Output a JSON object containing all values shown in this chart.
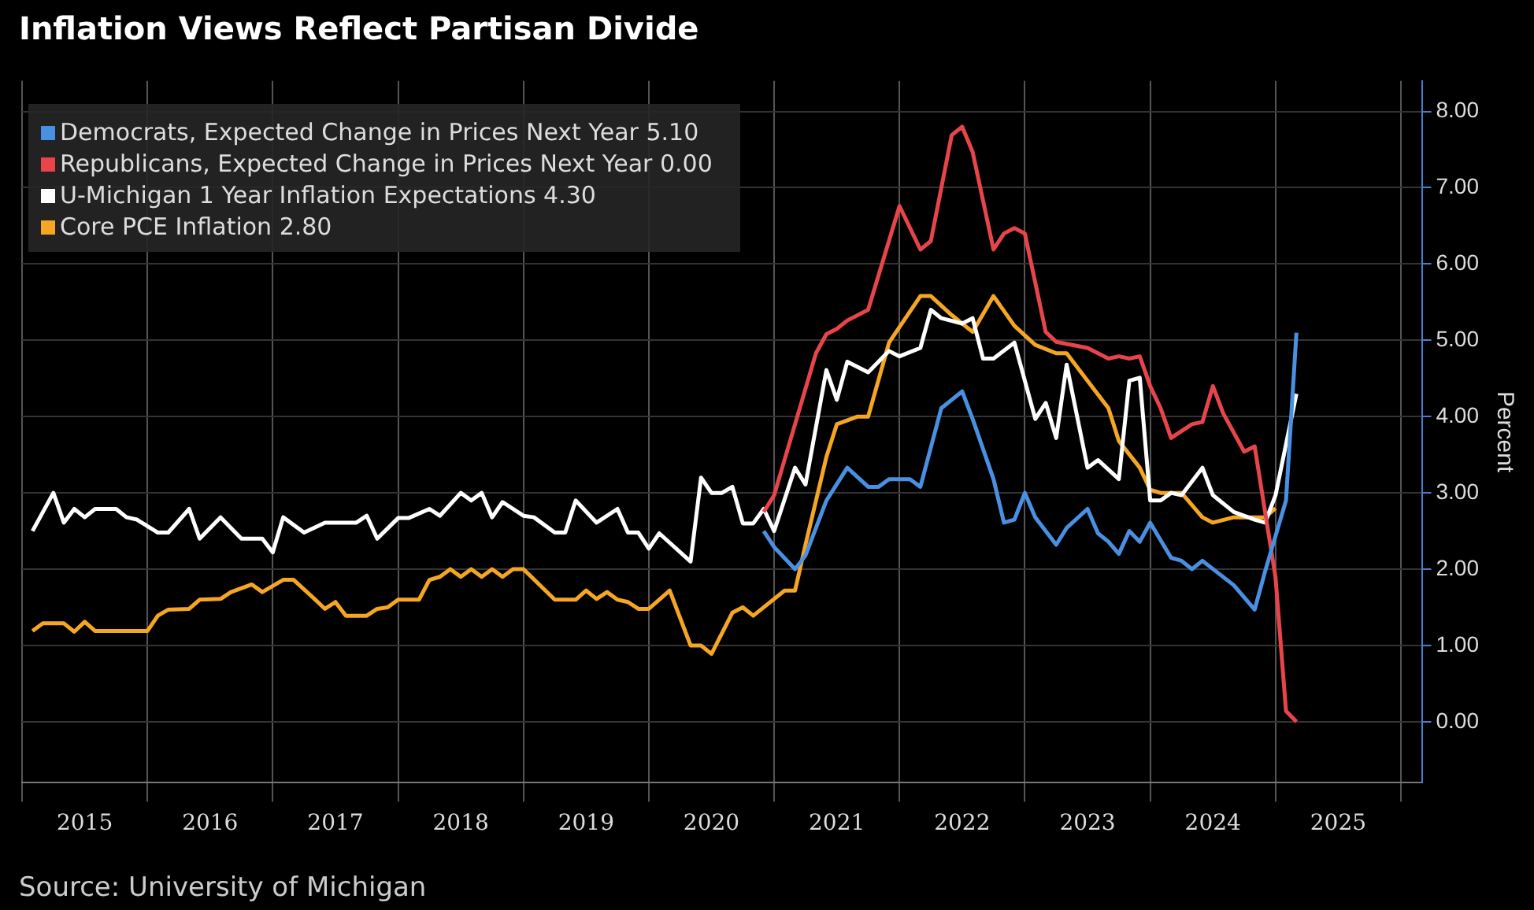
{
  "chart_data": {
    "type": "line",
    "title": "Inflation Views Reflect Partisan Divide",
    "ylabel": "Percent",
    "annotations": [
      "Source: University of Michigan"
    ],
    "xlim": [
      "2015-01",
      "2026-03"
    ],
    "xticks": [
      {
        "value": "2015-01",
        "label": null
      },
      {
        "value": "2015-07",
        "label": "2015"
      },
      {
        "value": "2016-01",
        "label": null
      },
      {
        "value": "2016-07",
        "label": "2016"
      },
      {
        "value": "2017-01",
        "label": null
      },
      {
        "value": "2017-07",
        "label": "2017"
      },
      {
        "value": "2018-01",
        "label": null
      },
      {
        "value": "2018-07",
        "label": "2018"
      },
      {
        "value": "2019-01",
        "label": null
      },
      {
        "value": "2019-07",
        "label": "2019"
      },
      {
        "value": "2020-01",
        "label": null
      },
      {
        "value": "2020-07",
        "label": "2020"
      },
      {
        "value": "2021-01",
        "label": null
      },
      {
        "value": "2021-07",
        "label": "2021"
      },
      {
        "value": "2022-01",
        "label": null
      },
      {
        "value": "2022-07",
        "label": "2022"
      },
      {
        "value": "2023-01",
        "label": null
      },
      {
        "value": "2023-07",
        "label": "2023"
      },
      {
        "value": "2024-01",
        "label": null
      },
      {
        "value": "2024-07",
        "label": "2024"
      },
      {
        "value": "2025-01",
        "label": null
      },
      {
        "value": "2025-07",
        "label": "2025"
      },
      {
        "value": "2026-01",
        "label": null
      }
    ],
    "ylim": [
      -0.8,
      8.4
    ],
    "yticks": [
      {
        "value": 0,
        "label": "0.00"
      },
      {
        "value": 1,
        "label": "1.00"
      },
      {
        "value": 2,
        "label": "2.00"
      },
      {
        "value": 3,
        "label": "3.00"
      },
      {
        "value": 4,
        "label": "4.00"
      },
      {
        "value": 5,
        "label": "5.00"
      },
      {
        "value": 6,
        "label": "6.00"
      },
      {
        "value": 7,
        "label": "7.00"
      },
      {
        "value": 8,
        "label": "8.00"
      }
    ],
    "grid": true,
    "legend": "top left",
    "marker": "none",
    "series": [
      {
        "name": "Democrats, Expected Change in Prices Next Year 5.10",
        "color": "#4a90e2",
        "x": [
          "2020-12",
          "2021-01",
          "2021-03",
          "2021-04",
          "2021-06",
          "2021-08",
          "2021-10",
          "2021-11",
          "2021-12",
          "2022-02",
          "2022-03",
          "2022-05",
          "2022-07",
          "2022-08",
          "2022-10",
          "2022-11",
          "2022-12",
          "2023-01",
          "2023-02",
          "2023-04",
          "2023-05",
          "2023-07",
          "2023-08",
          "2023-09",
          "2023-10",
          "2023-11",
          "2023-12",
          "2024-01",
          "2024-03",
          "2024-04",
          "2024-05",
          "2024-06",
          "2024-09",
          "2024-11",
          "2024-12",
          "2025-02",
          "2025-03"
        ],
        "values": [
          2.5,
          2.29,
          2.0,
          2.18,
          2.9,
          3.33,
          3.08,
          3.08,
          3.18,
          3.18,
          3.08,
          4.11,
          4.33,
          3.97,
          3.18,
          2.61,
          2.65,
          3.0,
          2.68,
          2.32,
          2.54,
          2.79,
          2.47,
          2.36,
          2.2,
          2.5,
          2.36,
          2.61,
          2.15,
          2.11,
          2.0,
          2.11,
          1.79,
          1.47,
          1.97,
          2.9,
          5.1
        ]
      },
      {
        "name": "Republicans, Expected Change in Prices Next Year 0.00",
        "color": "#e8454a",
        "x": [
          "2020-12",
          "2021-01",
          "2021-03",
          "2021-05",
          "2021-06",
          "2021-07",
          "2021-08",
          "2021-10",
          "2022-01",
          "2022-03",
          "2022-04",
          "2022-06",
          "2022-07",
          "2022-08",
          "2022-10",
          "2022-11",
          "2022-12",
          "2023-01",
          "2023-03",
          "2023-04",
          "2023-07",
          "2023-09",
          "2023-10",
          "2023-11",
          "2023-12",
          "2024-01",
          "2024-02",
          "2024-03",
          "2024-05",
          "2024-06",
          "2024-07",
          "2024-08",
          "2024-10",
          "2024-11",
          "2024-12",
          "2025-01",
          "2025-02",
          "2025-03"
        ],
        "values": [
          2.75,
          2.97,
          3.9,
          4.83,
          5.08,
          5.15,
          5.26,
          5.4,
          6.76,
          6.19,
          6.3,
          7.69,
          7.8,
          7.47,
          6.19,
          6.4,
          6.47,
          6.4,
          5.11,
          4.98,
          4.9,
          4.76,
          4.79,
          4.76,
          4.79,
          4.4,
          4.11,
          3.72,
          3.9,
          3.93,
          4.4,
          4.04,
          3.54,
          3.61,
          2.75,
          1.89,
          0.14,
          0.0
        ]
      },
      {
        "name": "U-Michigan 1 Year Inflation Expectations 4.30",
        "color": "#ffffff",
        "x": [
          "2015-02",
          "2015-04",
          "2015-05",
          "2015-06",
          "2015-07",
          "2015-08",
          "2015-10",
          "2015-11",
          "2015-12",
          "2016-02",
          "2016-03",
          "2016-05",
          "2016-06",
          "2016-08",
          "2016-10",
          "2016-12",
          "2017-01",
          "2017-02",
          "2017-04",
          "2017-06",
          "2017-09",
          "2017-10",
          "2017-11",
          "2018-01",
          "2018-02",
          "2018-04",
          "2018-05",
          "2018-07",
          "2018-08",
          "2018-09",
          "2018-10",
          "2018-11",
          "2019-01",
          "2019-02",
          "2019-04",
          "2019-05",
          "2019-06",
          "2019-08",
          "2019-10",
          "2019-11",
          "2019-12",
          "2020-01",
          "2020-02",
          "2020-05",
          "2020-06",
          "2020-07",
          "2020-08",
          "2020-09",
          "2020-10",
          "2020-11",
          "2020-12",
          "2021-01",
          "2021-03",
          "2021-04",
          "2021-06",
          "2021-07",
          "2021-08",
          "2021-10",
          "2021-12",
          "2022-01",
          "2022-03",
          "2022-04",
          "2022-05",
          "2022-07",
          "2022-08",
          "2022-09",
          "2022-10",
          "2022-12",
          "2023-02",
          "2023-03",
          "2023-04",
          "2023-05",
          "2023-07",
          "2023-08",
          "2023-10",
          "2023-11",
          "2023-12",
          "2024-01",
          "2024-02",
          "2024-03",
          "2024-04",
          "2024-06",
          "2024-07",
          "2024-09",
          "2024-11",
          "2024-12",
          "2025-01",
          "2025-03"
        ],
        "values": [
          2.5,
          3.0,
          2.61,
          2.79,
          2.68,
          2.79,
          2.79,
          2.68,
          2.65,
          2.48,
          2.48,
          2.79,
          2.4,
          2.68,
          2.4,
          2.4,
          2.22,
          2.68,
          2.48,
          2.61,
          2.61,
          2.7,
          2.4,
          2.67,
          2.67,
          2.79,
          2.7,
          3.0,
          2.9,
          3.0,
          2.68,
          2.88,
          2.7,
          2.68,
          2.48,
          2.48,
          2.9,
          2.61,
          2.79,
          2.48,
          2.48,
          2.27,
          2.47,
          2.1,
          3.2,
          3.0,
          3.0,
          3.08,
          2.6,
          2.6,
          2.79,
          2.5,
          3.33,
          3.11,
          4.61,
          4.22,
          4.72,
          4.58,
          4.86,
          4.79,
          4.9,
          5.4,
          5.29,
          5.22,
          5.29,
          4.76,
          4.76,
          4.97,
          3.97,
          4.18,
          3.72,
          4.68,
          3.33,
          3.43,
          3.18,
          4.47,
          4.51,
          2.9,
          2.9,
          3.0,
          2.97,
          3.33,
          2.97,
          2.75,
          2.65,
          2.61,
          2.97,
          4.3
        ]
      },
      {
        "name": "Core PCE Inflation 2.80",
        "color": "#f5a623",
        "x": [
          "2015-02",
          "2015-03",
          "2015-05",
          "2015-06",
          "2015-07",
          "2015-08",
          "2016-01",
          "2016-02",
          "2016-03",
          "2016-05",
          "2016-06",
          "2016-08",
          "2016-09",
          "2016-11",
          "2016-12",
          "2017-02",
          "2017-03",
          "2017-05",
          "2017-06",
          "2017-07",
          "2017-08",
          "2017-10",
          "2017-11",
          "2017-12",
          "2018-01",
          "2018-03",
          "2018-04",
          "2018-05",
          "2018-06",
          "2018-07",
          "2018-08",
          "2018-09",
          "2018-10",
          "2018-11",
          "2018-12",
          "2019-01",
          "2019-04",
          "2019-06",
          "2019-07",
          "2019-08",
          "2019-09",
          "2019-10",
          "2019-11",
          "2019-12",
          "2020-01",
          "2020-03",
          "2020-05",
          "2020-06",
          "2020-07",
          "2020-09",
          "2020-10",
          "2020-11",
          "2021-02",
          "2021-03",
          "2021-04",
          "2021-06",
          "2021-07",
          "2021-09",
          "2021-10",
          "2021-12",
          "2022-03",
          "2022-04",
          "2022-06",
          "2022-07",
          "2022-08",
          "2022-10",
          "2022-12",
          "2023-02",
          "2023-04",
          "2023-05",
          "2023-07",
          "2023-09",
          "2023-10",
          "2023-12",
          "2024-01",
          "2024-02",
          "2024-04",
          "2024-06",
          "2024-07",
          "2024-09",
          "2024-12",
          "2025-01"
        ],
        "values": [
          1.19,
          1.29,
          1.29,
          1.18,
          1.31,
          1.19,
          1.19,
          1.39,
          1.47,
          1.48,
          1.6,
          1.61,
          1.7,
          1.8,
          1.7,
          1.86,
          1.86,
          1.61,
          1.48,
          1.57,
          1.39,
          1.39,
          1.48,
          1.5,
          1.6,
          1.6,
          1.86,
          1.9,
          2.0,
          1.9,
          2.0,
          1.9,
          2.0,
          1.9,
          2.0,
          2.0,
          1.6,
          1.6,
          1.72,
          1.61,
          1.7,
          1.6,
          1.57,
          1.48,
          1.48,
          1.72,
          1.0,
          1.0,
          0.89,
          1.43,
          1.5,
          1.39,
          1.72,
          1.72,
          2.32,
          3.47,
          3.9,
          4.0,
          4.0,
          4.97,
          5.58,
          5.58,
          5.33,
          5.22,
          5.11,
          5.58,
          5.19,
          4.94,
          4.83,
          4.83,
          4.47,
          4.11,
          3.68,
          3.33,
          3.04,
          3.0,
          3.0,
          2.68,
          2.61,
          2.68,
          2.68,
          2.8
        ]
      }
    ]
  }
}
